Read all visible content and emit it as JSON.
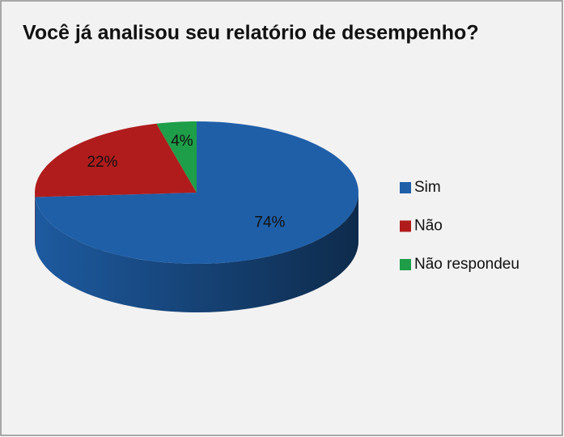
{
  "chart_data": {
    "type": "pie",
    "title": "Você já analisou seu relatório de desempenho?",
    "categories": [
      "Sim",
      "Não",
      "Não respondeu"
    ],
    "values": [
      74,
      22,
      4
    ],
    "value_labels": [
      "74%",
      "22%",
      "4%"
    ],
    "colors": [
      "#1f5fa8",
      "#b01c1c",
      "#1e9e48"
    ],
    "legend": "right"
  }
}
